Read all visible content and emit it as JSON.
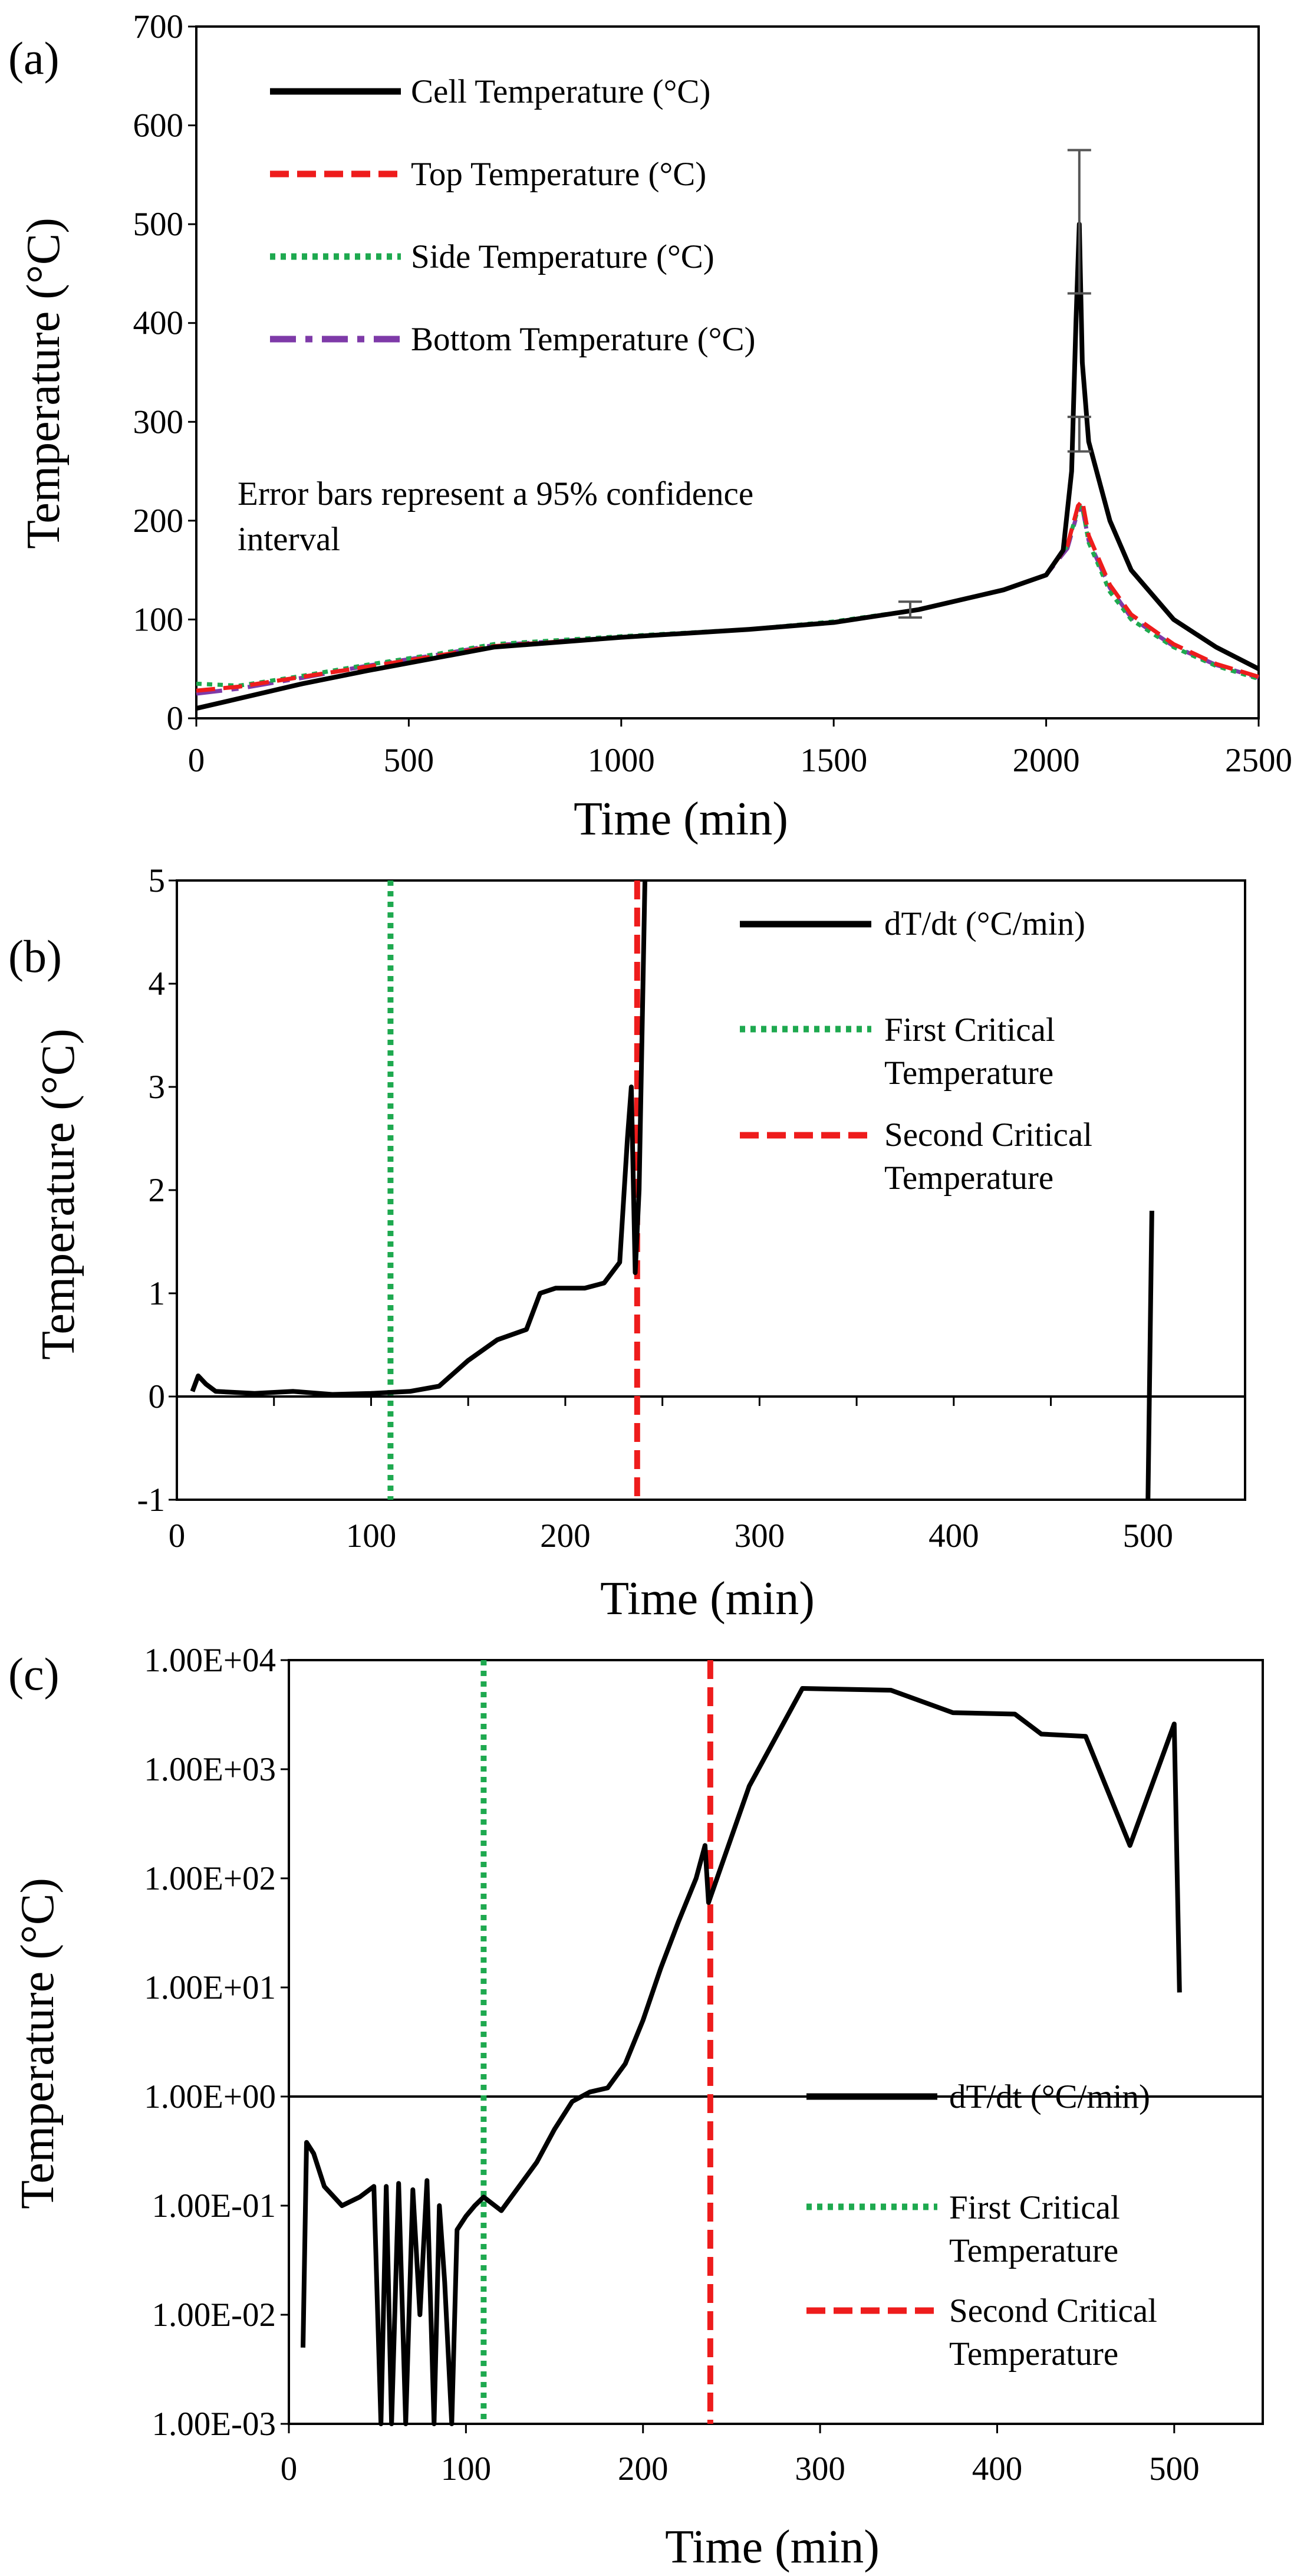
{
  "chart_data": [
    {
      "panel": "(a)",
      "type": "line",
      "xlabel": "Time (min)",
      "ylabel": "Temperature (°C)",
      "xlim": [
        0,
        2500
      ],
      "ylim": [
        0,
        700
      ],
      "xticks": [
        "0",
        "500",
        "1000",
        "1500",
        "2000",
        "2500"
      ],
      "yticks": [
        "0",
        "100",
        "200",
        "300",
        "400",
        "500",
        "600",
        "700"
      ],
      "legend_position": "top-left",
      "annotation": "Error bars represent a 95% confidence interval",
      "series": [
        {
          "name": "Cell Temperature (°C)",
          "color": "#000000",
          "style": "solid",
          "points": [
            [
              0,
              10
            ],
            [
              100,
              20
            ],
            [
              250,
              35
            ],
            [
              400,
              48
            ],
            [
              550,
              60
            ],
            [
              700,
              72
            ],
            [
              1000,
              82
            ],
            [
              1300,
              90
            ],
            [
              1500,
              97
            ],
            [
              1700,
              110
            ],
            [
              1900,
              130
            ],
            [
              2000,
              145
            ],
            [
              2040,
              170
            ],
            [
              2060,
              250
            ],
            [
              2070,
              400
            ],
            [
              2078,
              500
            ],
            [
              2085,
              360
            ],
            [
              2100,
              280
            ],
            [
              2150,
              200
            ],
            [
              2200,
              150
            ],
            [
              2300,
              100
            ],
            [
              2400,
              72
            ],
            [
              2500,
              50
            ]
          ]
        },
        {
          "name": "Top Temperature (°C)",
          "color": "#ee1c1c",
          "style": "dashed",
          "points": [
            [
              0,
              28
            ],
            [
              100,
              32
            ],
            [
              250,
              42
            ],
            [
              400,
              52
            ],
            [
              550,
              62
            ],
            [
              700,
              73
            ],
            [
              1000,
              82
            ],
            [
              1300,
              90
            ],
            [
              1500,
              97
            ],
            [
              1700,
              110
            ],
            [
              1900,
              130
            ],
            [
              2000,
              145
            ],
            [
              2050,
              175
            ],
            [
              2075,
              215
            ],
            [
              2085,
              220
            ],
            [
              2100,
              185
            ],
            [
              2150,
              135
            ],
            [
              2200,
              105
            ],
            [
              2300,
              75
            ],
            [
              2400,
              55
            ],
            [
              2500,
              42
            ]
          ]
        },
        {
          "name": "Side Temperature (°C)",
          "color": "#1ea94f",
          "style": "dotted",
          "points": [
            [
              0,
              35
            ],
            [
              100,
              33
            ],
            [
              250,
              43
            ],
            [
              400,
              54
            ],
            [
              550,
              64
            ],
            [
              700,
              75
            ],
            [
              1000,
              83
            ],
            [
              1300,
              90
            ],
            [
              1500,
              98
            ],
            [
              1700,
              110
            ],
            [
              1900,
              130
            ],
            [
              2000,
              145
            ],
            [
              2050,
              175
            ],
            [
              2075,
              212
            ],
            [
              2085,
              215
            ],
            [
              2100,
              178
            ],
            [
              2150,
              128
            ],
            [
              2200,
              100
            ],
            [
              2300,
              72
            ],
            [
              2400,
              53
            ],
            [
              2500,
              40
            ]
          ]
        },
        {
          "name": "Bottom Temperature (°C)",
          "color": "#7e3aa8",
          "style": "dash-dot",
          "points": [
            [
              0,
              25
            ],
            [
              100,
              30
            ],
            [
              250,
              41
            ],
            [
              400,
              53
            ],
            [
              550,
              63
            ],
            [
              700,
              74
            ],
            [
              1000,
              82
            ],
            [
              1300,
              90
            ],
            [
              1500,
              97
            ],
            [
              1700,
              110
            ],
            [
              1900,
              130
            ],
            [
              2000,
              145
            ],
            [
              2050,
              172
            ],
            [
              2075,
              210
            ],
            [
              2085,
              213
            ],
            [
              2100,
              180
            ],
            [
              2150,
              132
            ],
            [
              2200,
              102
            ],
            [
              2300,
              73
            ],
            [
              2400,
              54
            ],
            [
              2500,
              41
            ]
          ]
        }
      ],
      "error_bars": [
        {
          "x": 2078,
          "low": 430,
          "high": 575
        },
        {
          "x": 2078,
          "low": 270,
          "high": 305
        },
        {
          "x": 1680,
          "low": 102,
          "high": 118
        }
      ]
    },
    {
      "panel": "(b)",
      "type": "line",
      "xlabel": "Time (min)",
      "ylabel": "Temperature (°C)",
      "xlim": [
        0,
        550
      ],
      "ylim": [
        -1,
        5
      ],
      "xticks": [
        "0",
        "100",
        "200",
        "300",
        "400",
        "500"
      ],
      "yticks": [
        "-1",
        "0",
        "1",
        "2",
        "3",
        "4",
        "5"
      ],
      "legend_position": "top-right",
      "series": [
        {
          "name": "dT/dt (°C/min)",
          "color": "#000000",
          "style": "solid",
          "points": [
            [
              8,
              0.05
            ],
            [
              11,
              0.2
            ],
            [
              15,
              0.12
            ],
            [
              20,
              0.05
            ],
            [
              40,
              0.03
            ],
            [
              60,
              0.05
            ],
            [
              80,
              0.02
            ],
            [
              100,
              0.03
            ],
            [
              120,
              0.05
            ],
            [
              135,
              0.1
            ],
            [
              150,
              0.35
            ],
            [
              165,
              0.55
            ],
            [
              180,
              0.65
            ],
            [
              187,
              1.0
            ],
            [
              195,
              1.05
            ],
            [
              210,
              1.05
            ],
            [
              220,
              1.1
            ],
            [
              228,
              1.3
            ],
            [
              232,
              2.5
            ],
            [
              234,
              3.0
            ],
            [
              236,
              1.2
            ],
            [
              238,
              2.0
            ],
            [
              241,
              5.0
            ]
          ]
        },
        {
          "name": "dT/dt (°C/min) (late)",
          "color": "#000000",
          "style": "solid",
          "points": [
            [
              500,
              -1
            ],
            [
              502,
              1.8
            ]
          ]
        }
      ],
      "vertical_lines": [
        {
          "name": "First Critical Temperature",
          "x": 110,
          "color": "#1ea94f",
          "style": "dotted"
        },
        {
          "name": "Second Critical Temperature",
          "x": 237,
          "color": "#ee1c1c",
          "style": "dashed"
        }
      ]
    },
    {
      "panel": "(c)",
      "type": "line",
      "yscale": "log",
      "xlabel": "Time (min)",
      "ylabel": "Temperature (°C)",
      "xlim": [
        0,
        550
      ],
      "ylim": [
        0.001,
        10000
      ],
      "xticks": [
        "0",
        "100",
        "200",
        "300",
        "400",
        "500"
      ],
      "yticks": [
        "1.00E-03",
        "1.00E-02",
        "1.00E-01",
        "1.00E+00",
        "1.00E+01",
        "1.00E+02",
        "1.00E+03",
        "1.00E+04"
      ],
      "legend_position": "bottom-right",
      "series": [
        {
          "name": "dT/dt (°C/min)",
          "color": "#000000",
          "style": "solid",
          "points": [
            [
              8,
              0.005
            ],
            [
              10,
              0.38
            ],
            [
              14,
              0.3
            ],
            [
              20,
              0.15
            ],
            [
              30,
              0.1
            ],
            [
              40,
              0.12
            ],
            [
              48,
              0.15
            ],
            [
              52,
              0.001
            ],
            [
              55,
              0.15
            ],
            [
              58,
              0.001
            ],
            [
              62,
              0.16
            ],
            [
              66,
              0.001
            ],
            [
              70,
              0.14
            ],
            [
              74,
              0.01
            ],
            [
              78,
              0.17
            ],
            [
              82,
              0.001
            ],
            [
              85,
              0.1
            ],
            [
              88,
              0.02
            ],
            [
              92,
              0.001
            ],
            [
              95,
              0.06
            ],
            [
              100,
              0.08
            ],
            [
              105,
              0.1
            ],
            [
              110,
              0.12
            ],
            [
              120,
              0.09
            ],
            [
              130,
              0.15
            ],
            [
              140,
              0.25
            ],
            [
              150,
              0.5
            ],
            [
              160,
              0.9
            ],
            [
              170,
              1.1
            ],
            [
              180,
              1.2
            ],
            [
              190,
              2
            ],
            [
              200,
              5
            ],
            [
              210,
              15
            ],
            [
              220,
              40
            ],
            [
              230,
              100
            ],
            [
              235,
              200
            ],
            [
              237,
              60
            ],
            [
              260,
              700
            ],
            [
              290,
              5500
            ],
            [
              340,
              5300
            ],
            [
              375,
              3300
            ],
            [
              410,
              3200
            ],
            [
              425,
              2100
            ],
            [
              450,
              2000
            ],
            [
              475,
              200
            ],
            [
              500,
              2600
            ],
            [
              503,
              9
            ]
          ]
        }
      ],
      "vertical_lines": [
        {
          "name": "First Critical Temperature",
          "x": 110,
          "color": "#1ea94f",
          "style": "dotted"
        },
        {
          "name": "Second Critical Temperature",
          "x": 238,
          "color": "#ee1c1c",
          "style": "dashed"
        }
      ]
    }
  ],
  "panels": {
    "a": {
      "label": "(a)",
      "xlabel": "Time (min)",
      "ylabel": "Temperature (°C)",
      "xticks": [
        "0",
        "500",
        "1000",
        "1500",
        "2000",
        "2500"
      ],
      "yticks": [
        "0",
        "100",
        "200",
        "300",
        "400",
        "500",
        "600",
        "700"
      ],
      "legend": [
        "Cell Temperature (°C)",
        "Top Temperature (°C)",
        "Side Temperature (°C)",
        "Bottom Temperature (°C)"
      ],
      "note_line1": "Error bars represent a 95% confidence",
      "note_line2": "interval"
    },
    "b": {
      "label": "(b)",
      "xlabel": "Time (min)",
      "ylabel": "Temperature (°C)",
      "xticks": [
        "0",
        "100",
        "200",
        "300",
        "400",
        "500"
      ],
      "yticks": [
        "-1",
        "0",
        "1",
        "2",
        "3",
        "4",
        "5"
      ],
      "legend_1": "dT/dt (°C/min)",
      "legend_2a": "First Critical",
      "legend_2b": "Temperature",
      "legend_3a": "Second Critical",
      "legend_3b": "Temperature"
    },
    "c": {
      "label": "(c)",
      "xlabel": "Time (min)",
      "ylabel": "Temperature (°C)",
      "xticks": [
        "0",
        "100",
        "200",
        "300",
        "400",
        "500"
      ],
      "yticks": [
        "1.00E-03",
        "1.00E-02",
        "1.00E-01",
        "1.00E+00",
        "1.00E+01",
        "1.00E+02",
        "1.00E+03",
        "1.00E+04"
      ],
      "legend_1": "dT/dt (°C/min)",
      "legend_2a": "First Critical",
      "legend_2b": "Temperature",
      "legend_3a": "Second Critical",
      "legend_3b": "Temperature"
    }
  }
}
